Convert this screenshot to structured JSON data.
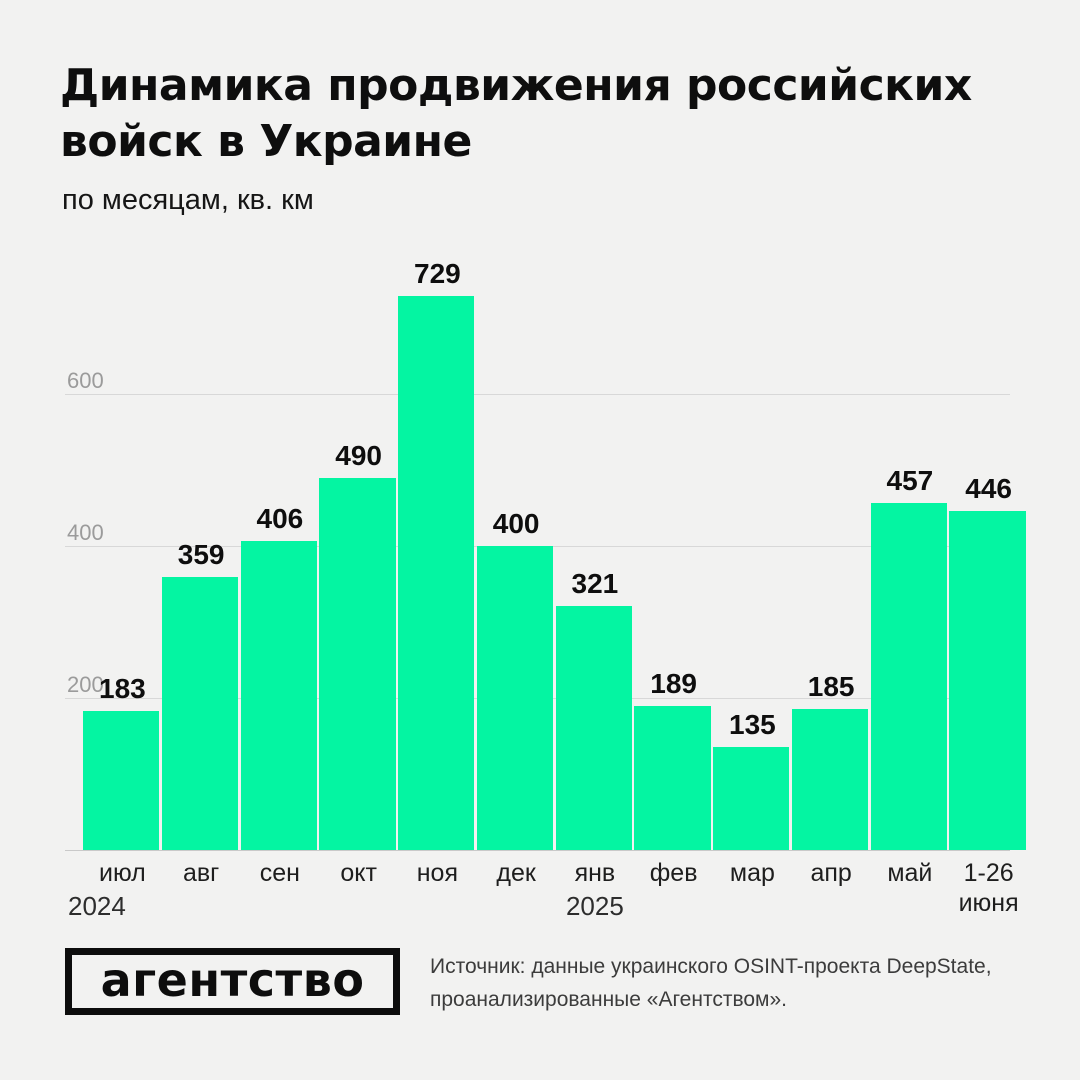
{
  "title_lines": [
    "Динамика продвижения российских",
    "войск в Украине"
  ],
  "subtitle": "по месяцам, кв. км",
  "chart_data": {
    "type": "bar",
    "title": "Динамика продвижения российских войск в Украине",
    "subtitle": "по месяцам, кв. км",
    "unit": "кв. км",
    "categories": [
      "июл",
      "авг",
      "сен",
      "окт",
      "ноя",
      "дек",
      "янв",
      "фев",
      "мар",
      "апр",
      "май",
      "1-26 июня"
    ],
    "values": [
      183,
      359,
      406,
      490,
      729,
      400,
      321,
      189,
      135,
      185,
      457,
      446
    ],
    "year_markers": [
      {
        "index": 0,
        "label": "2024"
      },
      {
        "index": 6,
        "label": "2025"
      }
    ],
    "gridlines": [
      200,
      400,
      600
    ],
    "ylim": [
      0,
      780
    ],
    "grid_on": true,
    "legend": "none",
    "bar_color": "#04f5a2"
  },
  "footer": {
    "logo_text": "агентство",
    "source_lines": [
      "Источник: данные украинского OSINT-проекта DeepState,",
      "проанализированные «Агентством»."
    ]
  },
  "colors": {
    "background": "#f2f2f1",
    "bar": "#04f5a2",
    "text": "#0e0e0e",
    "grid_line": "#d8d8d8",
    "grid_label": "#9b9b9b"
  }
}
